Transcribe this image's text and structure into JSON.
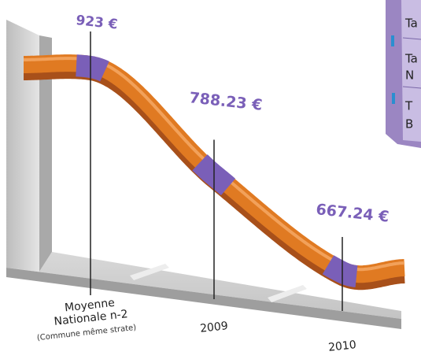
{
  "chart_data": {
    "type": "line",
    "categories": [
      "Moyenne Nationale n-2",
      "2009",
      "2010"
    ],
    "note": "(Commune même strate)",
    "values": [
      923,
      788.23,
      667.24
    ],
    "value_labels": [
      "923 €",
      "788.23 €",
      "667.24 €"
    ],
    "color": "#e07a22",
    "sidebar": [
      [
        "Ta"
      ],
      [
        "Ta",
        "N"
      ],
      [
        "T",
        "B"
      ]
    ]
  }
}
